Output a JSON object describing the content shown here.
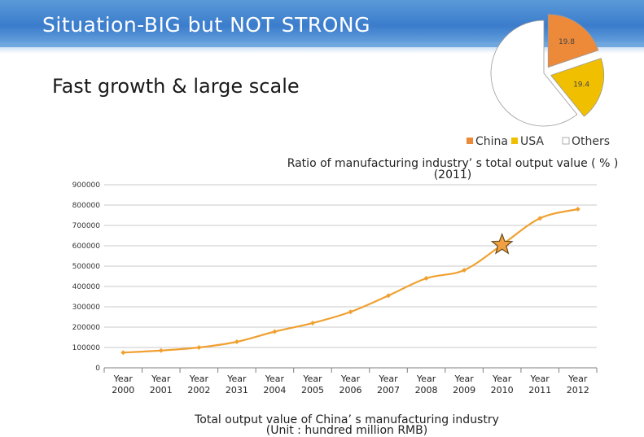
{
  "slide": {
    "title": "Situation-BIG but NOT STRONG",
    "subtitle": "Fast growth & large scale"
  },
  "colors": {
    "line": "#f0a030",
    "china": "#ed8a3a",
    "usa": "#f0c000",
    "others": "#ffffff",
    "star": "#f0a040"
  },
  "chart_data": [
    {
      "type": "pie",
      "title": "Ratio of manufacturing industry’ s total output value ( % )",
      "subtitle": "(2011)",
      "slices": [
        {
          "name": "China",
          "value": 19.8,
          "label": "19.8",
          "color": "#ed8a3a"
        },
        {
          "name": "USA",
          "value": 19.4,
          "label": "19.4",
          "color": "#f0c000"
        },
        {
          "name": "Others",
          "value": 60.8,
          "label": "",
          "color": "#ffffff"
        }
      ],
      "legend": [
        "China",
        "USA",
        "Others"
      ],
      "legend_position": "bottom"
    },
    {
      "type": "line",
      "title": "Total output value of China’ s manufacturing industry",
      "subtitle": "(Unit : hundred million RMB)",
      "categories": [
        [
          "Year",
          "2000"
        ],
        [
          "Year",
          "2001"
        ],
        [
          "Year",
          "2002"
        ],
        [
          "Year",
          "2031"
        ],
        [
          "Year",
          "2004"
        ],
        [
          "Year",
          "2005"
        ],
        [
          "Year",
          "2006"
        ],
        [
          "Year",
          "2007"
        ],
        [
          "Year",
          "2008"
        ],
        [
          "Year",
          "2009"
        ],
        [
          "Year",
          "2010"
        ],
        [
          "Year",
          "2011"
        ],
        [
          "Year",
          "2012"
        ]
      ],
      "values": [
        75000,
        85000,
        100000,
        128000,
        178000,
        220000,
        275000,
        355000,
        440000,
        480000,
        605000,
        735000,
        780000
      ],
      "ylim": [
        0,
        900000
      ],
      "yticks": [
        "0",
        "100000",
        "200000",
        "300000",
        "400000",
        "500000",
        "600000",
        "700000",
        "800000",
        "900000"
      ],
      "grid": true,
      "highlight_index": 10
    }
  ]
}
